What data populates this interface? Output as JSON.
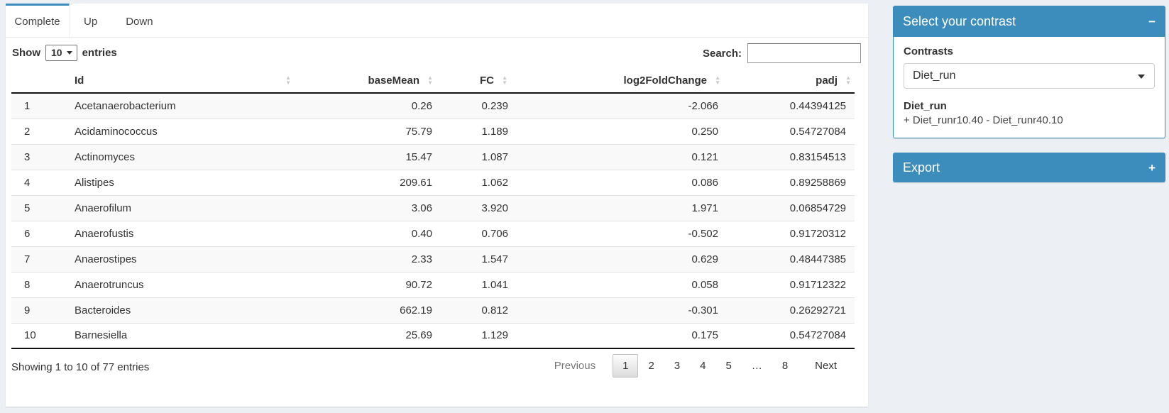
{
  "tabs": [
    {
      "label": "Complete",
      "active": true
    },
    {
      "label": "Up",
      "active": false
    },
    {
      "label": "Down",
      "active": false
    }
  ],
  "length_control": {
    "show_label": "Show",
    "value": "10",
    "entries_label": "entries"
  },
  "search": {
    "label": "Search:",
    "value": ""
  },
  "table": {
    "columns": [
      {
        "label": "",
        "sortable": false
      },
      {
        "label": "Id",
        "sortable": true
      },
      {
        "label": "baseMean",
        "sortable": true
      },
      {
        "label": "FC",
        "sortable": true
      },
      {
        "label": "log2FoldChange",
        "sortable": true
      },
      {
        "label": "padj",
        "sortable": true
      }
    ],
    "rows": [
      [
        "1",
        "Acetanaerobacterium",
        "0.26",
        "0.239",
        "-2.066",
        "0.44394125"
      ],
      [
        "2",
        "Acidaminococcus",
        "75.79",
        "1.189",
        "0.250",
        "0.54727084"
      ],
      [
        "3",
        "Actinomyces",
        "15.47",
        "1.087",
        "0.121",
        "0.83154513"
      ],
      [
        "4",
        "Alistipes",
        "209.61",
        "1.062",
        "0.086",
        "0.89258869"
      ],
      [
        "5",
        "Anaerofilum",
        "3.06",
        "3.920",
        "1.971",
        "0.06854729"
      ],
      [
        "6",
        "Anaerofustis",
        "0.40",
        "0.706",
        "-0.502",
        "0.91720312"
      ],
      [
        "7",
        "Anaerostipes",
        "2.33",
        "1.547",
        "0.629",
        "0.48447385"
      ],
      [
        "8",
        "Anaerotruncus",
        "90.72",
        "1.041",
        "0.058",
        "0.91712322"
      ],
      [
        "9",
        "Bacteroides",
        "662.19",
        "0.812",
        "-0.301",
        "0.26292721"
      ],
      [
        "10",
        "Barnesiella",
        "25.69",
        "1.129",
        "0.175",
        "0.54727084"
      ]
    ],
    "info": "Showing 1 to 10 of 77 entries",
    "pagination": {
      "previous": "Previous",
      "pages": [
        "1",
        "2",
        "3",
        "4",
        "5",
        "…",
        "8"
      ],
      "current": "1",
      "next": "Next"
    }
  },
  "contrast_panel": {
    "title": "Select your contrast",
    "collapse_icon": "−",
    "field_label": "Contrasts",
    "selected_contrast": "Diet_run",
    "detail_title": "Diet_run",
    "detail_text": "+ Diet_runr10.40 - Diet_runr40.10"
  },
  "export_panel": {
    "title": "Export",
    "expand_icon": "+"
  },
  "colors": {
    "accent": "#3c8dbc",
    "page_background": "#ecf0f5",
    "stripe": "#f9f9f9"
  }
}
